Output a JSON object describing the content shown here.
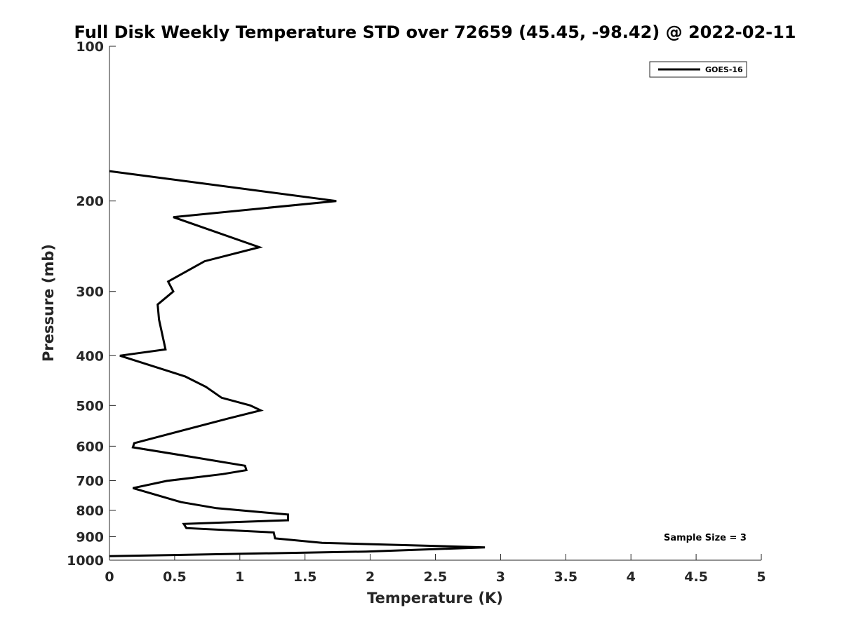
{
  "chart_data": {
    "type": "line",
    "title": "Full Disk Weekly Temperature STD over 72659 (45.45, -98.42) @ 2022-02-11",
    "xlabel": "Temperature (K)",
    "ylabel": "Pressure (mb)",
    "xlim": [
      0,
      5
    ],
    "ylim": [
      100,
      1000
    ],
    "y_scale": "log",
    "y_reversed": true,
    "x_ticks": [
      0,
      0.5,
      1,
      1.5,
      2,
      2.5,
      3,
      3.5,
      4,
      4.5,
      5
    ],
    "x_tick_labels": [
      "0",
      "0.5",
      "1",
      "1.5",
      "2",
      "2.5",
      "3",
      "3.5",
      "4",
      "4.5",
      "5"
    ],
    "y_ticks": [
      100,
      200,
      300,
      400,
      500,
      600,
      700,
      800,
      900,
      1000
    ],
    "y_tick_labels": [
      "100",
      "200",
      "300",
      "400",
      "500",
      "600",
      "700",
      "800",
      "900",
      "1000"
    ],
    "grid": false,
    "legend_position": "top-right",
    "series": [
      {
        "name": "GOES-16",
        "color": "#000000",
        "points": [
          {
            "x": 0.0,
            "y": 175
          },
          {
            "x": 1.74,
            "y": 200
          },
          {
            "x": 0.49,
            "y": 215
          },
          {
            "x": 1.15,
            "y": 246
          },
          {
            "x": 0.73,
            "y": 262
          },
          {
            "x": 0.45,
            "y": 287
          },
          {
            "x": 0.49,
            "y": 300
          },
          {
            "x": 0.37,
            "y": 318
          },
          {
            "x": 0.38,
            "y": 340
          },
          {
            "x": 0.43,
            "y": 389
          },
          {
            "x": 0.08,
            "y": 400
          },
          {
            "x": 0.58,
            "y": 439
          },
          {
            "x": 0.74,
            "y": 460
          },
          {
            "x": 0.86,
            "y": 483
          },
          {
            "x": 1.08,
            "y": 500
          },
          {
            "x": 1.16,
            "y": 511
          },
          {
            "x": 0.91,
            "y": 530
          },
          {
            "x": 0.19,
            "y": 592
          },
          {
            "x": 0.18,
            "y": 603
          },
          {
            "x": 0.54,
            "y": 624
          },
          {
            "x": 1.04,
            "y": 655
          },
          {
            "x": 1.05,
            "y": 668
          },
          {
            "x": 0.87,
            "y": 680
          },
          {
            "x": 0.44,
            "y": 701
          },
          {
            "x": 0.18,
            "y": 724
          },
          {
            "x": 0.55,
            "y": 771
          },
          {
            "x": 0.82,
            "y": 792
          },
          {
            "x": 1.37,
            "y": 815
          },
          {
            "x": 1.37,
            "y": 836
          },
          {
            "x": 0.57,
            "y": 850
          },
          {
            "x": 0.59,
            "y": 866
          },
          {
            "x": 1.26,
            "y": 883
          },
          {
            "x": 1.27,
            "y": 907
          },
          {
            "x": 1.63,
            "y": 925
          },
          {
            "x": 2.88,
            "y": 944
          },
          {
            "x": 1.97,
            "y": 962
          },
          {
            "x": 0.0,
            "y": 982
          }
        ]
      }
    ],
    "annotation": "Sample Size = 3"
  }
}
